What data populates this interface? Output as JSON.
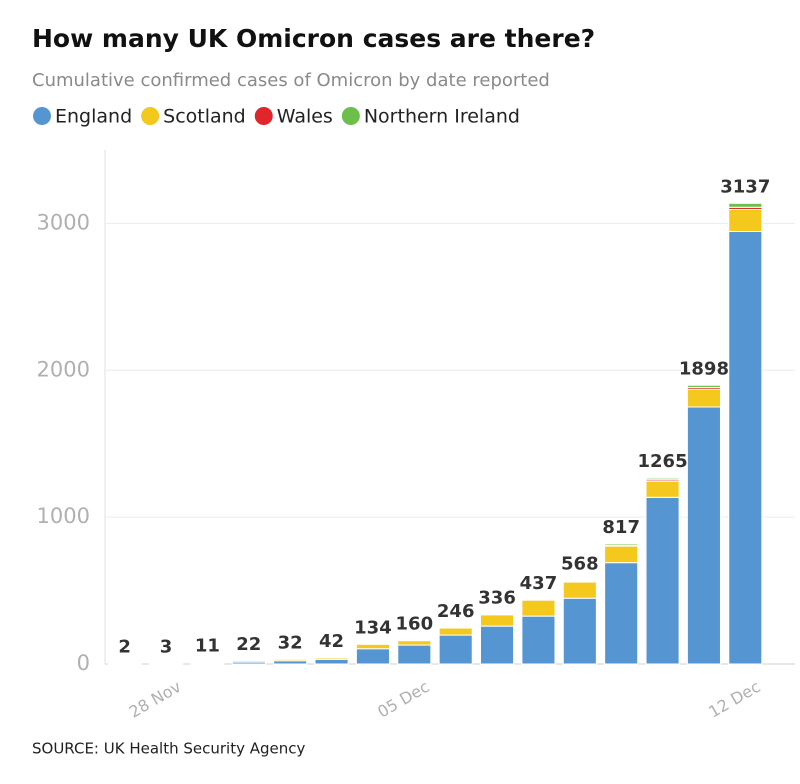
{
  "chart_data": {
    "type": "stacked_bar",
    "title": "How many UK Omicron cases are there?",
    "subtitle": "Cumulative confirmed cases of Omicron by date reported",
    "source": "SOURCE: UK Health Security Agency",
    "categories": [
      null,
      "28 Nov",
      null,
      null,
      null,
      null,
      null,
      "05 Dec",
      null,
      null,
      null,
      null,
      null,
      null,
      null,
      "12 Dec"
    ],
    "series": [
      {
        "name": "England",
        "color": "#5596d2",
        "values": [
          2,
          2,
          5,
          13,
          22,
          32,
          104,
          129,
          197,
          258,
          326,
          448,
          690,
          1135,
          1750,
          2945
        ]
      },
      {
        "name": "Scotland",
        "color": "#f4c81c",
        "values": [
          0,
          1,
          6,
          9,
          10,
          10,
          30,
          30,
          48,
          77,
          109,
          110,
          113,
          110,
          121,
          150
        ]
      },
      {
        "name": "Wales",
        "color": "#e0262b",
        "values": [
          0,
          0,
          0,
          0,
          0,
          0,
          0,
          1,
          1,
          1,
          1,
          4,
          4,
          10,
          12,
          15
        ]
      },
      {
        "name": "Northern Ireland",
        "color": "#6cbf4b",
        "values": [
          0,
          0,
          0,
          0,
          0,
          0,
          0,
          0,
          0,
          0,
          1,
          6,
          10,
          10,
          15,
          27
        ]
      }
    ],
    "totals": [
      2,
      3,
      11,
      22,
      32,
      42,
      134,
      160,
      246,
      336,
      437,
      568,
      817,
      1265,
      1898,
      3137
    ],
    "ylim": [
      0,
      3500
    ],
    "yticks": [
      0,
      1000,
      2000,
      3000
    ],
    "grid": true
  }
}
